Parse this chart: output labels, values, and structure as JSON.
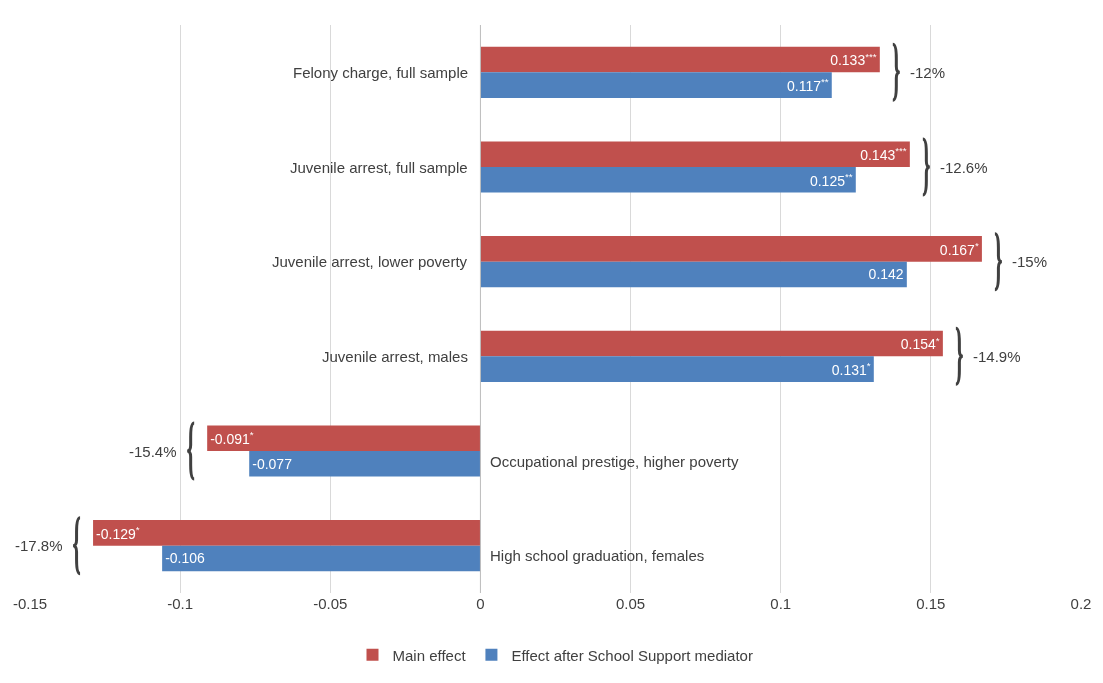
{
  "chart_data": {
    "type": "bar",
    "orientation": "horizontal",
    "categories": [
      "Felony charge, full sample",
      "Juvenile arrest, full sample",
      "Juvenile arrest, lower poverty",
      "Juvenile arrest, males",
      "Occupational prestige, higher poverty",
      "High school graduation, females"
    ],
    "series": [
      {
        "name": "Main effect",
        "color": "#c0504d",
        "values": [
          0.133,
          0.143,
          0.167,
          0.154,
          -0.091,
          -0.129
        ],
        "value_labels": [
          "0.133$^{***}$",
          "0.143$^{***}$",
          "0.167$^{*}$",
          "0.154$^{*}$",
          "-0.091$^{*}$",
          "-0.129$^{*}$"
        ]
      },
      {
        "name": "Effect after School Support mediator",
        "color": "#4f81bd",
        "values": [
          0.117,
          0.125,
          0.142,
          0.131,
          -0.077,
          -0.106
        ],
        "value_labels": [
          "0.117$^{**}$",
          "0.125$^{**}$",
          "0.142",
          "0.131$^{*}$",
          "-0.077",
          "-0.106"
        ]
      }
    ],
    "xlim": [
      -0.15,
      0.2
    ],
    "xticks": [
      -0.15,
      -0.1,
      -0.05,
      0,
      0.05,
      0.1,
      0.15,
      0.2
    ],
    "grid": "x",
    "legend": "bottom",
    "annotations": [
      "-12%",
      "-12.6%",
      "-15%",
      "-14.9%",
      "-15.4%",
      "-17.8%"
    ]
  }
}
